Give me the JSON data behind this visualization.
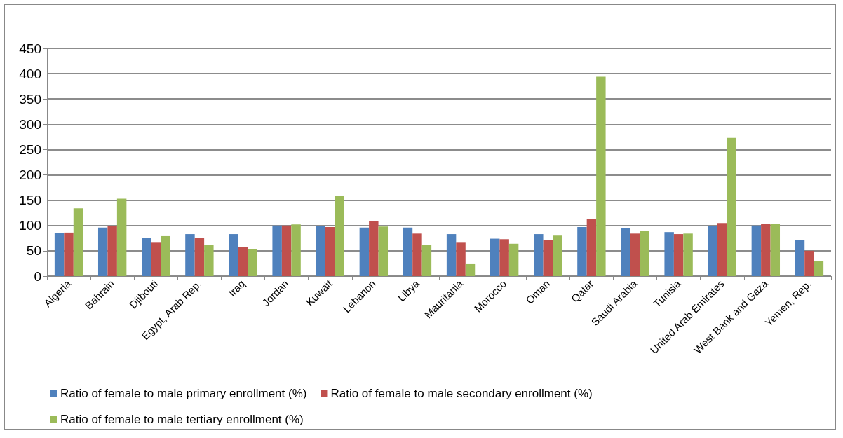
{
  "chart_data": {
    "type": "bar",
    "categories": [
      "Algeria",
      "Bahrain",
      "Djibouti",
      "Egypt, Arab Rep.",
      "Iraq",
      "Jordan",
      "Kuwait",
      "Lebanon",
      "Libya",
      "Mauritania",
      "Morocco",
      "Oman",
      "Qatar",
      "Saudi Arabia",
      "Tunisia",
      "United Arab Emirates",
      "West Bank and Gaza",
      "Yemen, Rep."
    ],
    "series": [
      {
        "name": "Ratio of female to male primary enrollment (%)",
        "color": "#4f81bd",
        "values": [
          85,
          96,
          76,
          83,
          83,
          100,
          99,
          96,
          96,
          83,
          74,
          83,
          97,
          94,
          87,
          99,
          100,
          71
        ]
      },
      {
        "name": "Ratio of female to male secondary enrollment (%)",
        "color": "#c0504d",
        "values": [
          86,
          99,
          66,
          76,
          57,
          100,
          97,
          109,
          84,
          66,
          73,
          72,
          113,
          84,
          83,
          105,
          104,
          50
        ]
      },
      {
        "name": "Ratio of female to male tertiary enrollment (%)",
        "color": "#9bbb59",
        "values": [
          134,
          153,
          79,
          62,
          53,
          102,
          158,
          98,
          61,
          25,
          64,
          80,
          394,
          90,
          84,
          273,
          104,
          30
        ]
      }
    ],
    "ylim": [
      0,
      450
    ],
    "yticks": [
      0,
      50,
      100,
      150,
      200,
      250,
      300,
      350,
      400,
      450
    ],
    "grid": "y",
    "legend": "bottom"
  }
}
